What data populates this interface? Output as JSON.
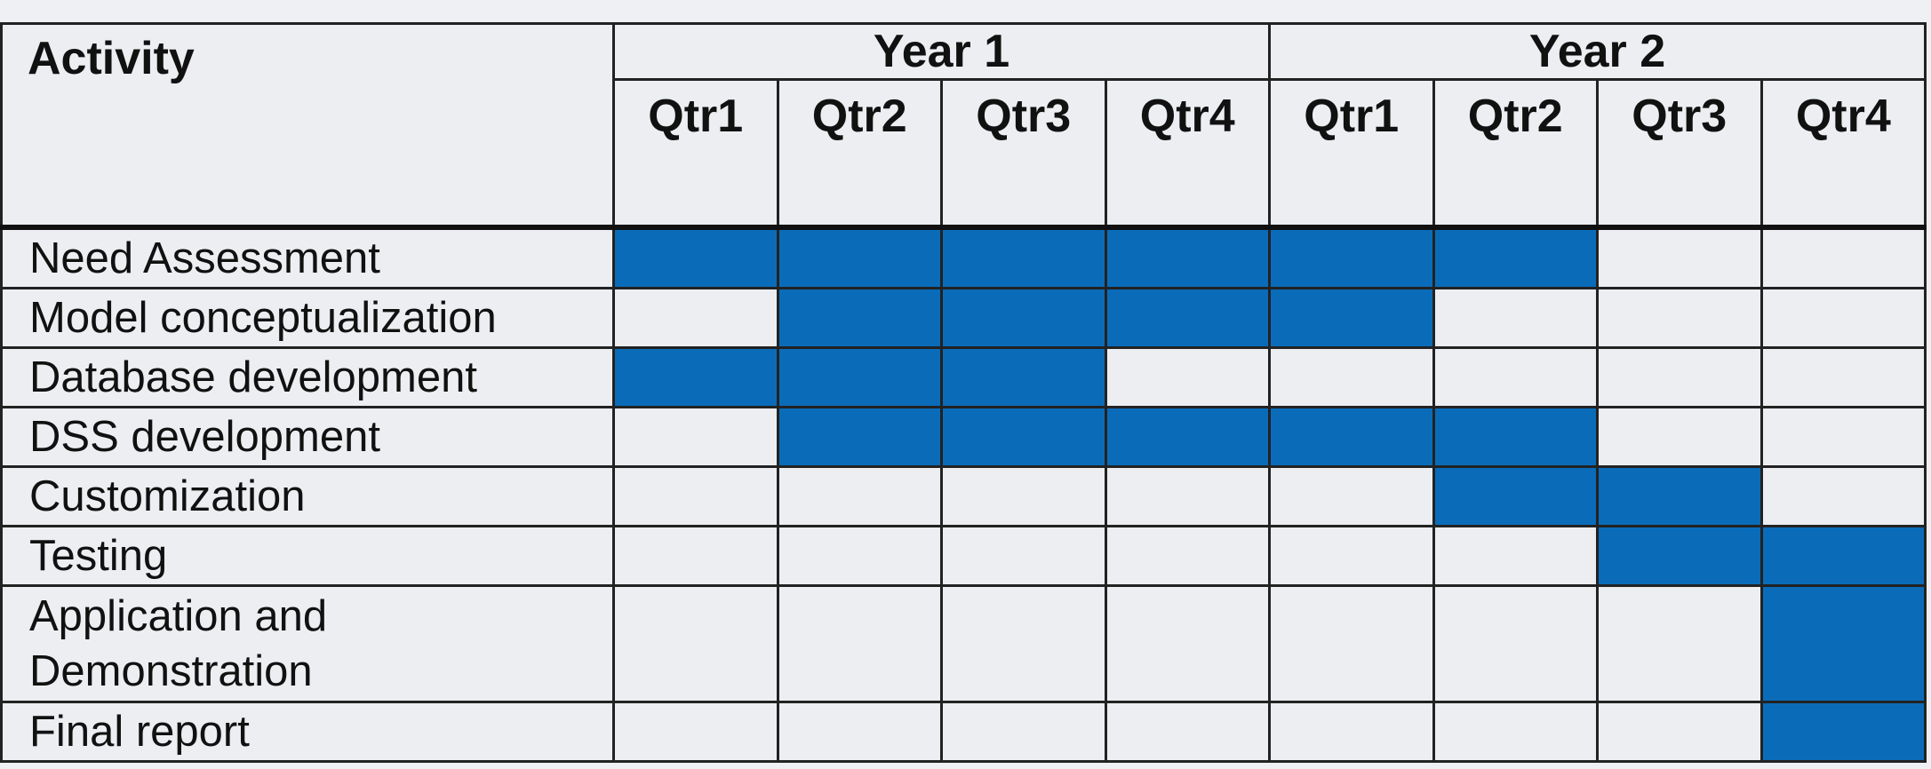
{
  "table": {
    "header": {
      "activity": "Activity",
      "years": [
        {
          "label": "Year 1",
          "quarters": [
            "Qtr1",
            "Qtr2",
            "Qtr3",
            "Qtr4"
          ]
        },
        {
          "label": "Year 2",
          "quarters": [
            "Qtr1",
            "Qtr2",
            "Qtr3",
            "Qtr4"
          ]
        }
      ]
    },
    "shade_color": "#0a6cb9",
    "rows": [
      {
        "activity": "Need Assessment",
        "shaded": [
          true,
          true,
          true,
          true,
          true,
          true,
          false,
          false
        ]
      },
      {
        "activity": "Model conceptualization",
        "shaded": [
          false,
          true,
          true,
          true,
          true,
          false,
          false,
          false
        ]
      },
      {
        "activity": "Database development",
        "shaded": [
          true,
          true,
          true,
          false,
          false,
          false,
          false,
          false
        ]
      },
      {
        "activity": "DSS development",
        "shaded": [
          false,
          true,
          true,
          true,
          true,
          true,
          false,
          false
        ]
      },
      {
        "activity": "Customization",
        "shaded": [
          false,
          false,
          false,
          false,
          false,
          true,
          true,
          false
        ]
      },
      {
        "activity": "Testing",
        "shaded": [
          false,
          false,
          false,
          false,
          false,
          false,
          true,
          true
        ]
      },
      {
        "activity": "Application and Demonstration",
        "shaded": [
          false,
          false,
          false,
          false,
          false,
          false,
          false,
          true
        ]
      },
      {
        "activity": "Final report",
        "shaded": [
          false,
          false,
          false,
          false,
          false,
          false,
          false,
          true
        ]
      }
    ]
  }
}
